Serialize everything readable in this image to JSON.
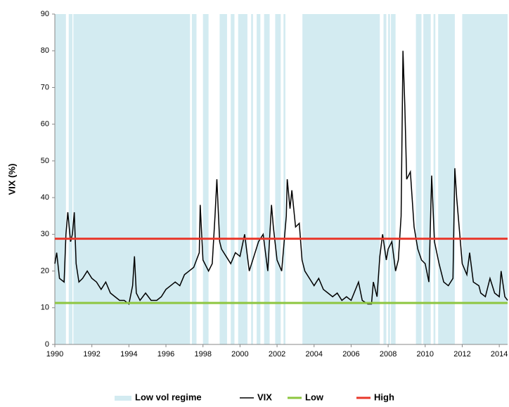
{
  "chart_data": {
    "type": "line",
    "ylabel": "VIX (%)",
    "xlim": [
      1990,
      2014.45
    ],
    "ylim": [
      0,
      90
    ],
    "xticks": [
      1990,
      1992,
      1994,
      1996,
      1998,
      2000,
      2002,
      2004,
      2006,
      2008,
      2010,
      2012,
      2014
    ],
    "yticks": [
      0,
      10,
      20,
      30,
      40,
      50,
      60,
      70,
      80,
      90
    ],
    "regime": {
      "name": "Low vol regime",
      "color": "#d3ebf1",
      "spans": [
        [
          1990.0,
          1990.6
        ],
        [
          1990.75,
          1990.95
        ],
        [
          1991.0,
          1997.3
        ],
        [
          1997.4,
          1997.65
        ],
        [
          1998.0,
          1998.3
        ],
        [
          1998.9,
          1999.3
        ],
        [
          1999.5,
          1999.7
        ],
        [
          1999.9,
          2000.4
        ],
        [
          2000.6,
          2000.7
        ],
        [
          2000.9,
          2001.1
        ],
        [
          2001.3,
          2001.6
        ],
        [
          2001.9,
          2002.2
        ],
        [
          2002.35,
          2002.45
        ],
        [
          2003.37,
          2007.55
        ],
        [
          2007.75,
          2007.9
        ],
        [
          2008.0,
          2008.1
        ],
        [
          2008.15,
          2008.4
        ],
        [
          2009.5,
          2009.8
        ],
        [
          2009.9,
          2010.3
        ],
        [
          2010.45,
          2010.55
        ],
        [
          2010.7,
          2011.6
        ],
        [
          2012.0,
          2014.45
        ]
      ]
    },
    "x": [
      1990.0,
      1990.1,
      1990.25,
      1990.5,
      1990.6,
      1990.7,
      1990.85,
      1990.95,
      1991.05,
      1991.15,
      1991.3,
      1991.5,
      1991.75,
      1992.0,
      1992.25,
      1992.5,
      1992.75,
      1993.0,
      1993.25,
      1993.5,
      1993.75,
      1994.0,
      1994.2,
      1994.3,
      1994.4,
      1994.6,
      1994.9,
      1995.2,
      1995.5,
      1995.75,
      1996.0,
      1996.25,
      1996.5,
      1996.75,
      1997.0,
      1997.25,
      1997.5,
      1997.8,
      1997.85,
      1998.0,
      1998.3,
      1998.5,
      1998.65,
      1998.75,
      1998.9,
      1999.0,
      1999.25,
      1999.5,
      1999.75,
      2000.0,
      2000.25,
      2000.5,
      2000.75,
      2001.0,
      2001.25,
      2001.5,
      2001.7,
      2001.8,
      2002.0,
      2002.25,
      2002.5,
      2002.55,
      2002.7,
      2002.8,
      2003.0,
      2003.2,
      2003.35,
      2003.5,
      2003.75,
      2004.0,
      2004.25,
      2004.5,
      2004.75,
      2005.0,
      2005.25,
      2005.5,
      2005.75,
      2006.0,
      2006.4,
      2006.6,
      2006.9,
      2007.1,
      2007.2,
      2007.4,
      2007.55,
      2007.7,
      2007.9,
      2008.0,
      2008.2,
      2008.4,
      2008.55,
      2008.7,
      2008.8,
      2008.9,
      2009.0,
      2009.2,
      2009.4,
      2009.6,
      2009.8,
      2010.0,
      2010.2,
      2010.35,
      2010.5,
      2010.75,
      2011.0,
      2011.25,
      2011.5,
      2011.6,
      2011.7,
      2011.9,
      2012.0,
      2012.25,
      2012.4,
      2012.6,
      2012.9,
      2013.0,
      2013.25,
      2013.5,
      2013.75,
      2014.0,
      2014.1,
      2014.3,
      2014.45
    ],
    "series": [
      {
        "name": "VIX",
        "color": "#000000",
        "values": [
          22,
          25,
          18,
          17,
          30,
          36,
          28,
          30,
          36,
          22,
          17,
          18,
          20,
          18,
          17,
          15,
          17,
          14,
          13,
          12,
          12,
          11,
          16,
          24,
          14,
          12,
          14,
          12,
          12,
          13,
          15,
          16,
          17,
          16,
          19,
          20,
          21,
          25,
          38,
          23,
          20,
          22,
          35,
          45,
          28,
          26,
          24,
          22,
          25,
          24,
          30,
          20,
          24,
          28,
          30,
          20,
          38,
          32,
          23,
          20,
          35,
          45,
          37,
          42,
          32,
          33,
          23,
          20,
          18,
          16,
          18,
          15,
          14,
          13,
          14,
          12,
          13,
          12,
          17,
          12,
          11,
          11,
          17,
          13,
          24,
          30,
          23,
          26,
          28,
          20,
          23,
          35,
          80,
          65,
          45,
          47,
          32,
          26,
          23,
          22,
          17,
          46,
          28,
          22,
          17,
          16,
          18,
          48,
          40,
          28,
          22,
          19,
          25,
          17,
          16,
          14,
          13,
          18,
          14,
          13,
          20,
          13,
          12
        ]
      }
    ],
    "hlines": [
      {
        "name": "Low",
        "value": 11.3,
        "color": "#8dc63f"
      },
      {
        "name": "High",
        "value": 28.8,
        "color": "#e8382b"
      }
    ]
  }
}
